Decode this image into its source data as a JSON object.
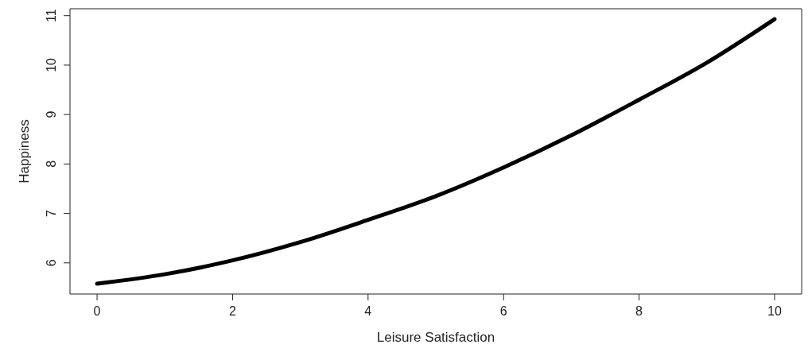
{
  "chart_data": {
    "type": "line",
    "xlabel": "Leisure Satisfaction",
    "ylabel": "Happiness",
    "x": [
      0,
      1,
      2,
      3,
      4,
      5,
      6,
      7,
      8,
      9,
      10
    ],
    "series": [
      {
        "color": "#000000",
        "values": [
          5.58,
          5.77,
          6.05,
          6.42,
          6.87,
          7.35,
          7.93,
          8.58,
          9.3,
          10.05,
          10.93
        ]
      }
    ],
    "xlim": [
      -0.4,
      10.4
    ],
    "xticks": [
      0,
      2,
      4,
      6,
      8,
      10
    ],
    "ylim": [
      5.37,
      11.14
    ],
    "yticks": [
      6,
      7,
      8,
      9,
      10,
      11
    ],
    "grid": false,
    "legend": false,
    "marker": "none",
    "line_style": "solid"
  }
}
